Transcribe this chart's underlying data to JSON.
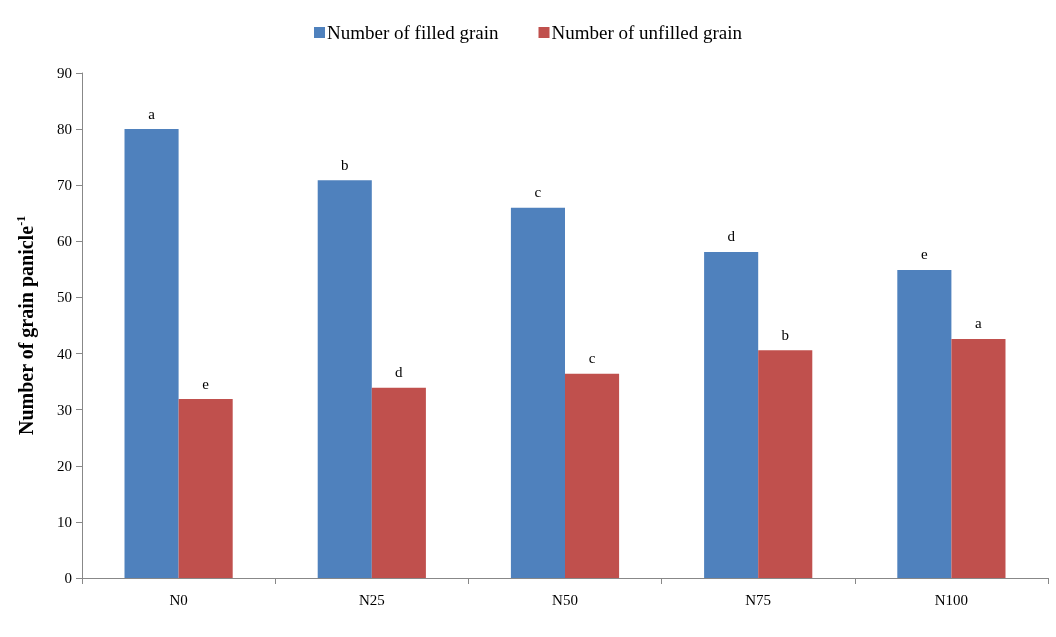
{
  "chart_data": {
    "type": "bar",
    "ylabel": "Number of grain panicle$^{-1}$",
    "categories": [
      "N0",
      "N25",
      "N50",
      "N75",
      "N100"
    ],
    "series": [
      {
        "name": "Number of filled grain",
        "color": "#4f81bd",
        "values": [
          80.0,
          70.9,
          66.0,
          58.1,
          54.9
        ]
      },
      {
        "name": "Number of unfilled grain",
        "color": "#c0504d",
        "values": [
          31.9,
          33.9,
          36.4,
          40.6,
          42.6
        ]
      }
    ],
    "annotations": [
      {
        "text": "a",
        "x": "N0",
        "y": 80.0
      },
      {
        "text": "b",
        "x": "N25",
        "y": 70.9
      },
      {
        "text": "c",
        "x": "N50",
        "y": 66.0
      },
      {
        "text": "d",
        "x": "N75",
        "y": 58.1
      },
      {
        "text": "e",
        "x": "N100",
        "y": 54.9
      },
      {
        "text": "e",
        "x": "N0",
        "y": 31.9
      },
      {
        "text": "d",
        "x": "N25",
        "y": 33.9
      },
      {
        "text": "c",
        "x": "N50",
        "y": 36.4
      },
      {
        "text": "b",
        "x": "N75",
        "y": 40.6
      },
      {
        "text": "a",
        "x": "N100",
        "y": 42.6
      }
    ],
    "ylim": [
      0,
      90
    ],
    "yticks": [
      0,
      10,
      20,
      30,
      40,
      50,
      60,
      70,
      80,
      90
    ],
    "grid": false,
    "legend": "top"
  }
}
